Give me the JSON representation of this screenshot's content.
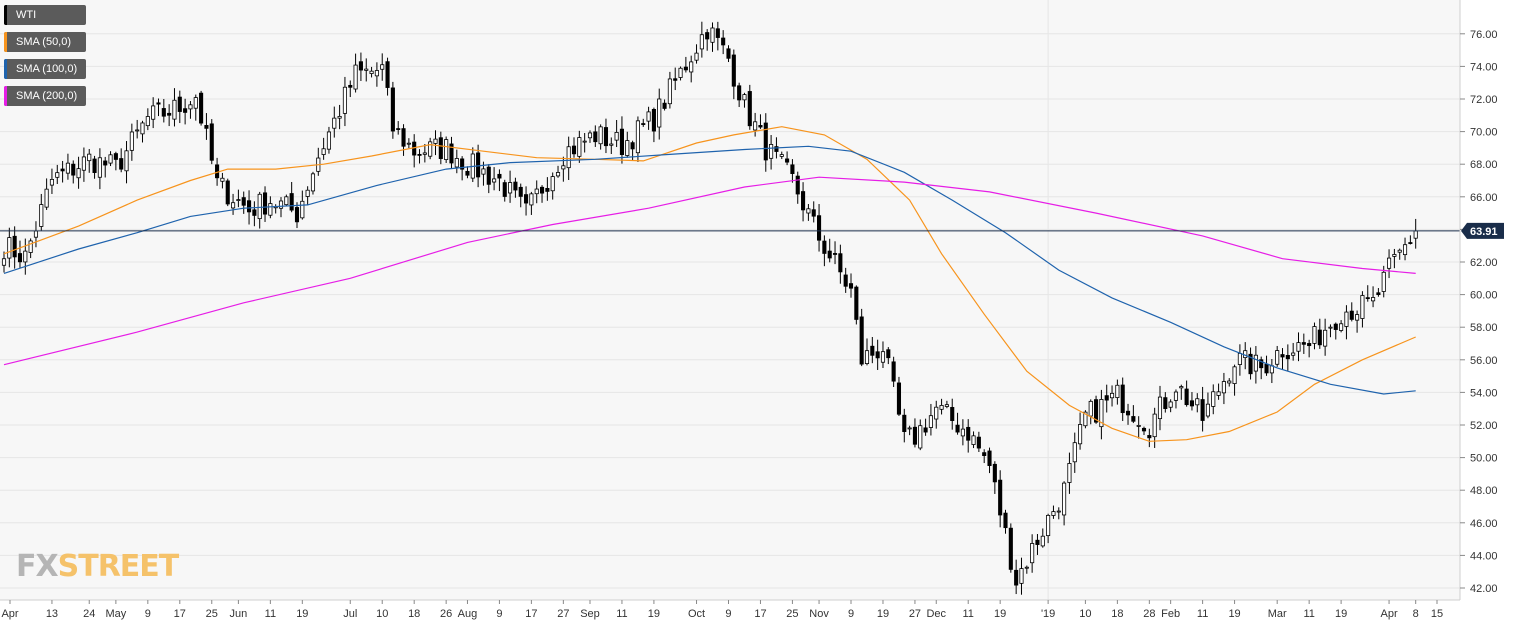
{
  "legend": [
    {
      "label": "WTI",
      "color": "#000000"
    },
    {
      "label": "SMA (50,0)",
      "color": "#f7941d"
    },
    {
      "label": "SMA (100,0)",
      "color": "#1f63ad"
    },
    {
      "label": "SMA (200,0)",
      "color": "#e61ee6"
    }
  ],
  "logo": {
    "part1": "FX",
    "part2": "STREET"
  },
  "chart_data": {
    "type": "candlestick",
    "title": "",
    "instrument": "WTI",
    "timeframe": "daily",
    "ylim": [
      41,
      77.6
    ],
    "y_ticks": [
      42,
      44,
      46,
      48,
      50,
      52,
      54,
      56,
      58,
      60,
      62,
      64,
      66,
      68,
      70,
      72,
      74,
      76
    ],
    "y_tick_labels": [
      "42.00",
      "44.00",
      "46.00",
      "48.00",
      "50.00",
      "52.00",
      "54.00",
      "56.00",
      "58.00",
      "60.00",
      "62.00",
      "64.00",
      "66.00",
      "68.00",
      "70.00",
      "72.00",
      "74.00",
      "76.00"
    ],
    "x_tick_labels": [
      "Apr",
      "13",
      "24",
      "May",
      "9",
      "17",
      "25",
      "Jun",
      "11",
      "19",
      "Jul",
      "10",
      "18",
      "26",
      "Aug",
      "9",
      "17",
      "27",
      "Sep",
      "11",
      "19",
      "Oct",
      "9",
      "17",
      "25",
      "Nov",
      "9",
      "19",
      "27",
      "Dec",
      "11",
      "19",
      "'19",
      "10",
      "18",
      "28",
      "Feb",
      "11",
      "19",
      "Mar",
      "11",
      "19",
      "Apr",
      "8",
      "15"
    ],
    "current_price": 63.91,
    "current_price_label": "63.91",
    "grid": true,
    "legend_position": "top-left",
    "price_anchors": [
      [
        "2018-04-02",
        63.0
      ],
      [
        "2018-04-06",
        62.3
      ],
      [
        "2018-04-13",
        67.0
      ],
      [
        "2018-04-24",
        68.3
      ],
      [
        "2018-05-01",
        67.8
      ],
      [
        "2018-05-09",
        70.8
      ],
      [
        "2018-05-17",
        71.5
      ],
      [
        "2018-05-22",
        72.2
      ],
      [
        "2018-05-28",
        66.8
      ],
      [
        "2018-06-05",
        65.2
      ],
      [
        "2018-06-11",
        65.8
      ],
      [
        "2018-06-18",
        65.0
      ],
      [
        "2018-06-22",
        68.5
      ],
      [
        "2018-07-03",
        73.5
      ],
      [
        "2018-07-10",
        73.8
      ],
      [
        "2018-07-12",
        70.2
      ],
      [
        "2018-07-18",
        68.8
      ],
      [
        "2018-07-26",
        69.0
      ],
      [
        "2018-08-01",
        68.0
      ],
      [
        "2018-08-09",
        67.0
      ],
      [
        "2018-08-16",
        65.0
      ],
      [
        "2018-08-27",
        68.7
      ],
      [
        "2018-09-04",
        69.8
      ],
      [
        "2018-09-11",
        69.2
      ],
      [
        "2018-09-19",
        70.8
      ],
      [
        "2018-10-03",
        76.4
      ],
      [
        "2018-10-09",
        74.5
      ],
      [
        "2018-10-12",
        71.6
      ],
      [
        "2018-10-18",
        69.0
      ],
      [
        "2018-10-25",
        67.0
      ],
      [
        "2018-11-01",
        63.5
      ],
      [
        "2018-11-09",
        60.2
      ],
      [
        "2018-11-13",
        56.0
      ],
      [
        "2018-11-19",
        56.8
      ],
      [
        "2018-11-23",
        51.0
      ],
      [
        "2018-11-27",
        51.3
      ],
      [
        "2018-12-03",
        53.0
      ],
      [
        "2018-12-11",
        51.6
      ],
      [
        "2018-12-17",
        49.5
      ],
      [
        "2018-12-24",
        42.5
      ],
      [
        "2018-12-28",
        45.0
      ],
      [
        "2019-01-04",
        48.0
      ],
      [
        "2019-01-10",
        52.5
      ],
      [
        "2019-01-18",
        53.8
      ],
      [
        "2019-01-28",
        52.0
      ],
      [
        "2019-02-04",
        54.5
      ],
      [
        "2019-02-11",
        52.4
      ],
      [
        "2019-02-19",
        56.0
      ],
      [
        "2019-02-26",
        55.5
      ],
      [
        "2019-03-04",
        56.7
      ],
      [
        "2019-03-11",
        56.9
      ],
      [
        "2019-03-19",
        59.0
      ],
      [
        "2019-03-27",
        59.4
      ],
      [
        "2019-04-01",
        61.5
      ],
      [
        "2019-04-08",
        63.91
      ]
    ],
    "series": [
      {
        "name": "SMA (50,0)",
        "color": "#f7941d",
        "points": [
          [
            "2018-04-02",
            62.5
          ],
          [
            "2018-04-20",
            64.2
          ],
          [
            "2018-05-07",
            65.8
          ],
          [
            "2018-05-21",
            67.0
          ],
          [
            "2018-05-30",
            67.7
          ],
          [
            "2018-06-12",
            67.7
          ],
          [
            "2018-06-25",
            68.0
          ],
          [
            "2018-07-06",
            68.5
          ],
          [
            "2018-07-23",
            69.2
          ],
          [
            "2018-08-06",
            68.8
          ],
          [
            "2018-08-20",
            68.4
          ],
          [
            "2018-09-04",
            68.3
          ],
          [
            "2018-09-17",
            68.2
          ],
          [
            "2018-10-01",
            69.3
          ],
          [
            "2018-10-10",
            69.8
          ],
          [
            "2018-10-23",
            70.3
          ],
          [
            "2018-11-02",
            69.8
          ],
          [
            "2018-11-14",
            68.3
          ],
          [
            "2018-11-26",
            65.8
          ],
          [
            "2018-12-04",
            62.5
          ],
          [
            "2018-12-14",
            58.8
          ],
          [
            "2018-12-26",
            55.3
          ],
          [
            "2019-01-07",
            53.2
          ],
          [
            "2019-01-17",
            51.8
          ],
          [
            "2019-01-28",
            51.0
          ],
          [
            "2019-02-06",
            51.1
          ],
          [
            "2019-02-18",
            51.6
          ],
          [
            "2019-03-01",
            52.8
          ],
          [
            "2019-03-12",
            54.5
          ],
          [
            "2019-03-25",
            56.0
          ],
          [
            "2019-04-08",
            57.4
          ]
        ]
      },
      {
        "name": "SMA (100,0)",
        "color": "#1f63ad",
        "points": [
          [
            "2018-04-02",
            61.3
          ],
          [
            "2018-04-20",
            62.8
          ],
          [
            "2018-05-07",
            63.8
          ],
          [
            "2018-05-21",
            64.8
          ],
          [
            "2018-06-04",
            65.3
          ],
          [
            "2018-06-20",
            65.5
          ],
          [
            "2018-07-09",
            66.7
          ],
          [
            "2018-07-26",
            67.7
          ],
          [
            "2018-08-13",
            68.1
          ],
          [
            "2018-09-04",
            68.3
          ],
          [
            "2018-09-24",
            68.6
          ],
          [
            "2018-10-12",
            68.9
          ],
          [
            "2018-10-30",
            69.1
          ],
          [
            "2018-11-09",
            68.8
          ],
          [
            "2018-11-23",
            67.5
          ],
          [
            "2018-12-06",
            65.8
          ],
          [
            "2018-12-20",
            63.8
          ],
          [
            "2019-01-03",
            61.5
          ],
          [
            "2019-01-17",
            59.8
          ],
          [
            "2019-02-01",
            58.3
          ],
          [
            "2019-02-15",
            56.8
          ],
          [
            "2019-03-01",
            55.5
          ],
          [
            "2019-03-15",
            54.5
          ],
          [
            "2019-03-29",
            53.9
          ],
          [
            "2019-04-08",
            54.1
          ]
        ]
      },
      {
        "name": "SMA (200,0)",
        "color": "#e61ee6",
        "points": [
          [
            "2018-04-02",
            55.7
          ],
          [
            "2018-05-07",
            57.7
          ],
          [
            "2018-06-04",
            59.5
          ],
          [
            "2018-07-02",
            61.0
          ],
          [
            "2018-08-01",
            63.2
          ],
          [
            "2018-08-23",
            64.3
          ],
          [
            "2018-09-18",
            65.3
          ],
          [
            "2018-10-12",
            66.6
          ],
          [
            "2018-11-01",
            67.2
          ],
          [
            "2018-11-23",
            66.9
          ],
          [
            "2018-12-17",
            66.3
          ],
          [
            "2019-01-14",
            65.0
          ],
          [
            "2019-02-11",
            63.6
          ],
          [
            "2019-03-04",
            62.2
          ],
          [
            "2019-03-25",
            61.6
          ],
          [
            "2019-04-08",
            61.3
          ]
        ]
      }
    ]
  }
}
